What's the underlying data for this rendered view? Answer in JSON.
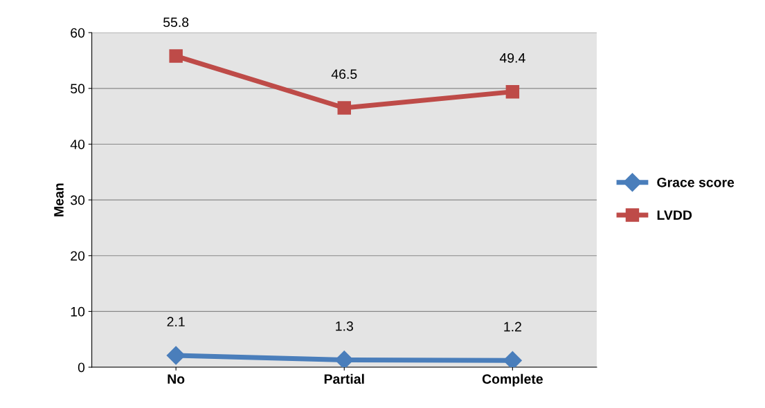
{
  "chart_data": {
    "type": "line",
    "ylabel": "Mean",
    "categories": [
      "No",
      "Partial",
      "Complete"
    ],
    "series": [
      {
        "name": "Grace score",
        "color": "#4a7ebb",
        "marker": "diamond",
        "values": [
          2.1,
          1.3,
          1.2
        ]
      },
      {
        "name": "LVDD",
        "color": "#be4b48",
        "marker": "square",
        "values": [
          55.8,
          46.5,
          49.4
        ]
      }
    ],
    "ylim": [
      0,
      60
    ],
    "yticks": [
      0,
      10,
      20,
      30,
      40,
      50,
      60
    ],
    "grid": "y",
    "legend": "right",
    "data_labels": true
  }
}
